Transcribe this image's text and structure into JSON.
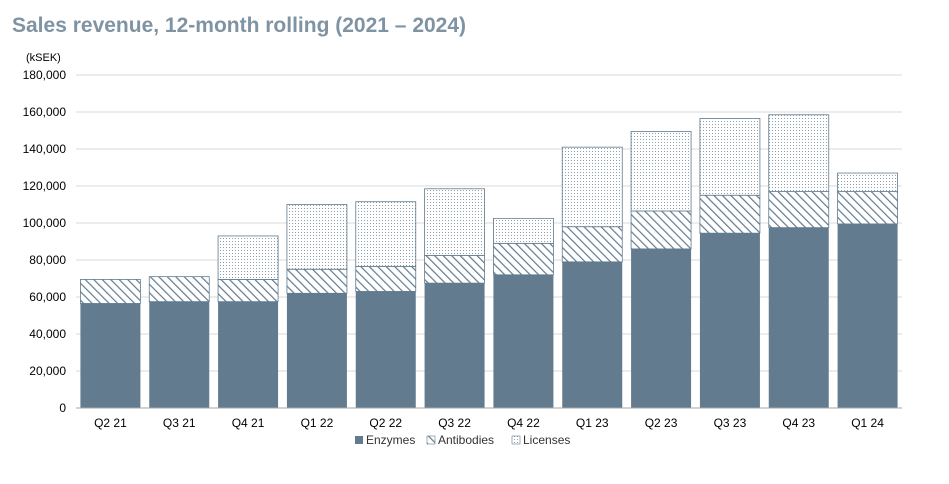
{
  "colors": {
    "enzymes": "#627b8e",
    "antibodies_hatch": "#627b8e",
    "licenses_dot": "#8fa0ad",
    "grid": "#d9d9d9",
    "axis": "#a6a6a6",
    "title": "#7f93a3"
  },
  "chart_data": {
    "type": "bar",
    "stacked": true,
    "title": "Sales revenue, 12-month rolling (2021 – 2024)",
    "unit_label": "(kSEK)",
    "xlabel": "",
    "ylabel": "",
    "categories": [
      "Q2 21",
      "Q3 21",
      "Q4 21",
      "Q1 22",
      "Q2 22",
      "Q3 22",
      "Q4 22",
      "Q1 23",
      "Q2 23",
      "Q3 23",
      "Q4 23",
      "Q1 24"
    ],
    "series": [
      {
        "name": "Enzymes",
        "style": "solid",
        "values": [
          56500,
          57500,
          57500,
          62000,
          63000,
          67500,
          72000,
          79000,
          86000,
          94500,
          97500,
          99500
        ]
      },
      {
        "name": "Antibodies",
        "style": "hatch",
        "values": [
          13000,
          13500,
          12000,
          13000,
          13500,
          15000,
          17000,
          19000,
          20500,
          20500,
          19500,
          17500
        ]
      },
      {
        "name": "Licenses",
        "style": "dots",
        "values": [
          0,
          0,
          23500,
          35000,
          35000,
          36000,
          13500,
          43000,
          43000,
          41500,
          41500,
          10000
        ]
      }
    ],
    "ylim": [
      0,
      180000
    ],
    "yticks": [
      0,
      20000,
      40000,
      60000,
      80000,
      100000,
      120000,
      140000,
      160000,
      180000
    ],
    "ytick_labels": [
      "0",
      "20,000",
      "40,000",
      "60,000",
      "80,000",
      "100,000",
      "120,000",
      "140,000",
      "160,000",
      "180,000"
    ],
    "grid": true,
    "legend_position": "bottom"
  }
}
